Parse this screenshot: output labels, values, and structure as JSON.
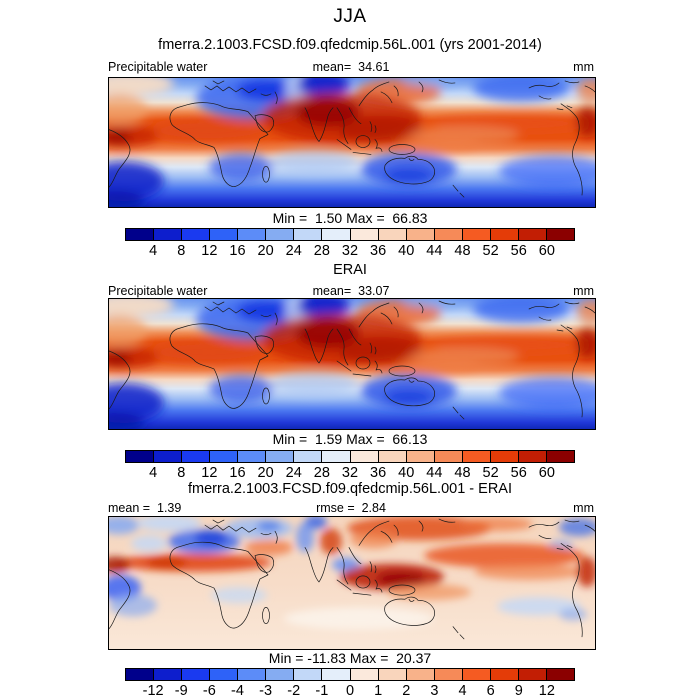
{
  "page_title": "JJA",
  "subtitle": "fmerra.2.1003.FCSD.f09.qfedcmip.56L.001 (yrs 2001-2014)",
  "palette": [
    "#00008B",
    "#0D1ECD",
    "#1A3AF0",
    "#2E62F8",
    "#5C8CF8",
    "#85ACF2",
    "#C2D8F8",
    "#E4EEFA",
    "#FBE9DC",
    "#F9D5BC",
    "#F8B28A",
    "#F68A58",
    "#F55B22",
    "#E43C08",
    "#C21E04",
    "#8B0000"
  ],
  "panels": {
    "model": {
      "variable": "Precipitable water",
      "mean": "mean=  34.61",
      "units": "mm",
      "minmax": "Min =  1.50 Max =  66.83",
      "ticks": [
        "4",
        "8",
        "12",
        "16",
        "20",
        "24",
        "28",
        "32",
        "36",
        "40",
        "44",
        "48",
        "52",
        "56",
        "60"
      ]
    },
    "obs": {
      "title": "ERAI",
      "variable": "Precipitable water",
      "mean": "mean=  33.07",
      "units": "mm",
      "minmax": "Min =  1.59 Max =  66.13",
      "ticks": [
        "4",
        "8",
        "12",
        "16",
        "20",
        "24",
        "28",
        "32",
        "36",
        "40",
        "44",
        "48",
        "52",
        "56",
        "60"
      ]
    },
    "diff": {
      "title": "fmerra.2.1003.FCSD.f09.qfedcmip.56L.001 - ERAI",
      "mean": "mean =  1.39",
      "rmse": "rmse =  2.84",
      "units": "mm",
      "minmax": "Min = -11.83 Max =  20.37",
      "ticks": [
        "-12",
        "-9",
        "-6",
        "-4",
        "-3",
        "-2",
        "-1",
        "0",
        "1",
        "2",
        "3",
        "4",
        "6",
        "9",
        "12"
      ]
    }
  },
  "chart_data": [
    {
      "type": "heatmap",
      "subtype": "filled_contour_global_map",
      "season": "JJA",
      "title": "fmerra.2.1003.FCSD.f09.qfedcmip.56L.001 (yrs 2001-2014)",
      "variable": "Precipitable water",
      "units": "mm",
      "stats": {
        "mean": 34.61,
        "min": 1.5,
        "max": 66.83
      },
      "contour_levels": [
        4,
        8,
        12,
        16,
        20,
        24,
        28,
        32,
        36,
        40,
        44,
        48,
        52,
        56,
        60
      ],
      "palette": [
        "#00008B",
        "#0D1ECD",
        "#1A3AF0",
        "#2E62F8",
        "#5C8CF8",
        "#85ACF2",
        "#C2D8F8",
        "#E4EEFA",
        "#FBE9DC",
        "#F9D5BC",
        "#F8B28A",
        "#F68A58",
        "#F55B22",
        "#E43C08",
        "#C21E04",
        "#8B0000"
      ],
      "legend_position": "bottom"
    },
    {
      "type": "heatmap",
      "subtype": "filled_contour_global_map",
      "season": "JJA",
      "title": "ERAI",
      "variable": "Precipitable water",
      "units": "mm",
      "stats": {
        "mean": 33.07,
        "min": 1.59,
        "max": 66.13
      },
      "contour_levels": [
        4,
        8,
        12,
        16,
        20,
        24,
        28,
        32,
        36,
        40,
        44,
        48,
        52,
        56,
        60
      ],
      "palette": [
        "#00008B",
        "#0D1ECD",
        "#1A3AF0",
        "#2E62F8",
        "#5C8CF8",
        "#85ACF2",
        "#C2D8F8",
        "#E4EEFA",
        "#FBE9DC",
        "#F9D5BC",
        "#F8B28A",
        "#F68A58",
        "#F55B22",
        "#E43C08",
        "#C21E04",
        "#8B0000"
      ],
      "legend_position": "bottom"
    },
    {
      "type": "heatmap",
      "subtype": "filled_contour_global_map_difference",
      "season": "JJA",
      "title": "fmerra.2.1003.FCSD.f09.qfedcmip.56L.001 - ERAI",
      "variable": "Precipitable water difference",
      "units": "mm",
      "stats": {
        "mean": 1.39,
        "rmse": 2.84,
        "min": -11.83,
        "max": 20.37
      },
      "contour_levels": [
        -12,
        -9,
        -6,
        -4,
        -3,
        -2,
        -1,
        0,
        1,
        2,
        3,
        4,
        6,
        9,
        12
      ],
      "palette": [
        "#00008B",
        "#0D1ECD",
        "#1A3AF0",
        "#2E62F8",
        "#5C8CF8",
        "#85ACF2",
        "#C2D8F8",
        "#E4EEFA",
        "#FBE9DC",
        "#F9D5BC",
        "#F8B28A",
        "#F68A58",
        "#F55B22",
        "#E43C08",
        "#C21E04",
        "#8B0000"
      ],
      "legend_position": "bottom"
    }
  ]
}
